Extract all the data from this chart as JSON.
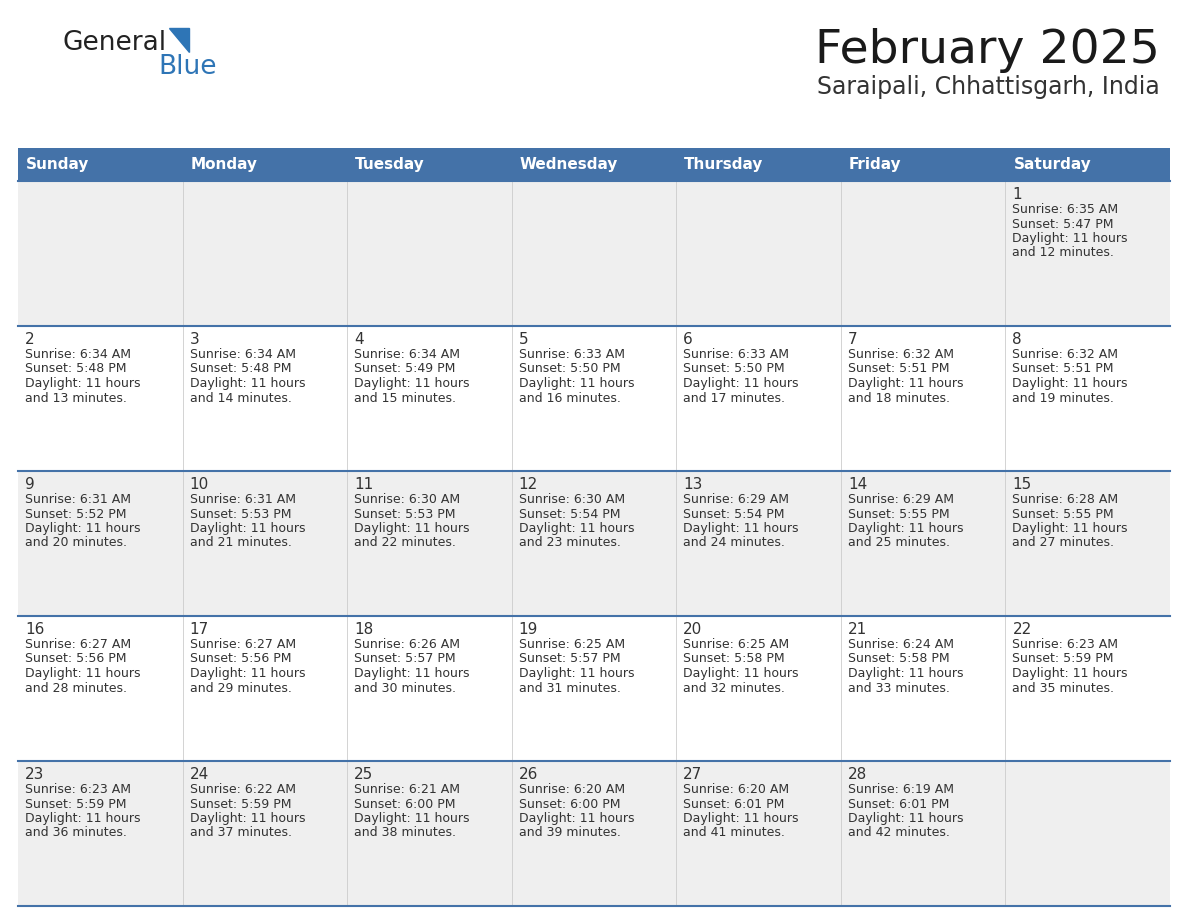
{
  "title": "February 2025",
  "subtitle": "Saraipali, Chhattisgarh, India",
  "days_of_week": [
    "Sunday",
    "Monday",
    "Tuesday",
    "Wednesday",
    "Thursday",
    "Friday",
    "Saturday"
  ],
  "header_bg": "#4472A8",
  "header_text": "#FFFFFF",
  "cell_bg_odd": "#EFEFEF",
  "cell_bg_even": "#FFFFFF",
  "divider_color": "#4472A8",
  "text_color": "#333333",
  "day_num_color": "#333333",
  "logo_general_color": "#222222",
  "logo_blue_color": "#2E75B6",
  "logo_triangle_color": "#2E75B6",
  "calendar": [
    [
      {
        "day": null,
        "sunrise": null,
        "sunset": null,
        "daylight": null
      },
      {
        "day": null,
        "sunrise": null,
        "sunset": null,
        "daylight": null
      },
      {
        "day": null,
        "sunrise": null,
        "sunset": null,
        "daylight": null
      },
      {
        "day": null,
        "sunrise": null,
        "sunset": null,
        "daylight": null
      },
      {
        "day": null,
        "sunrise": null,
        "sunset": null,
        "daylight": null
      },
      {
        "day": null,
        "sunrise": null,
        "sunset": null,
        "daylight": null
      },
      {
        "day": 1,
        "sunrise": "6:35 AM",
        "sunset": "5:47 PM",
        "daylight": "11 hours and 12 minutes."
      }
    ],
    [
      {
        "day": 2,
        "sunrise": "6:34 AM",
        "sunset": "5:48 PM",
        "daylight": "11 hours and 13 minutes."
      },
      {
        "day": 3,
        "sunrise": "6:34 AM",
        "sunset": "5:48 PM",
        "daylight": "11 hours and 14 minutes."
      },
      {
        "day": 4,
        "sunrise": "6:34 AM",
        "sunset": "5:49 PM",
        "daylight": "11 hours and 15 minutes."
      },
      {
        "day": 5,
        "sunrise": "6:33 AM",
        "sunset": "5:50 PM",
        "daylight": "11 hours and 16 minutes."
      },
      {
        "day": 6,
        "sunrise": "6:33 AM",
        "sunset": "5:50 PM",
        "daylight": "11 hours and 17 minutes."
      },
      {
        "day": 7,
        "sunrise": "6:32 AM",
        "sunset": "5:51 PM",
        "daylight": "11 hours and 18 minutes."
      },
      {
        "day": 8,
        "sunrise": "6:32 AM",
        "sunset": "5:51 PM",
        "daylight": "11 hours and 19 minutes."
      }
    ],
    [
      {
        "day": 9,
        "sunrise": "6:31 AM",
        "sunset": "5:52 PM",
        "daylight": "11 hours and 20 minutes."
      },
      {
        "day": 10,
        "sunrise": "6:31 AM",
        "sunset": "5:53 PM",
        "daylight": "11 hours and 21 minutes."
      },
      {
        "day": 11,
        "sunrise": "6:30 AM",
        "sunset": "5:53 PM",
        "daylight": "11 hours and 22 minutes."
      },
      {
        "day": 12,
        "sunrise": "6:30 AM",
        "sunset": "5:54 PM",
        "daylight": "11 hours and 23 minutes."
      },
      {
        "day": 13,
        "sunrise": "6:29 AM",
        "sunset": "5:54 PM",
        "daylight": "11 hours and 24 minutes."
      },
      {
        "day": 14,
        "sunrise": "6:29 AM",
        "sunset": "5:55 PM",
        "daylight": "11 hours and 25 minutes."
      },
      {
        "day": 15,
        "sunrise": "6:28 AM",
        "sunset": "5:55 PM",
        "daylight": "11 hours and 27 minutes."
      }
    ],
    [
      {
        "day": 16,
        "sunrise": "6:27 AM",
        "sunset": "5:56 PM",
        "daylight": "11 hours and 28 minutes."
      },
      {
        "day": 17,
        "sunrise": "6:27 AM",
        "sunset": "5:56 PM",
        "daylight": "11 hours and 29 minutes."
      },
      {
        "day": 18,
        "sunrise": "6:26 AM",
        "sunset": "5:57 PM",
        "daylight": "11 hours and 30 minutes."
      },
      {
        "day": 19,
        "sunrise": "6:25 AM",
        "sunset": "5:57 PM",
        "daylight": "11 hours and 31 minutes."
      },
      {
        "day": 20,
        "sunrise": "6:25 AM",
        "sunset": "5:58 PM",
        "daylight": "11 hours and 32 minutes."
      },
      {
        "day": 21,
        "sunrise": "6:24 AM",
        "sunset": "5:58 PM",
        "daylight": "11 hours and 33 minutes."
      },
      {
        "day": 22,
        "sunrise": "6:23 AM",
        "sunset": "5:59 PM",
        "daylight": "11 hours and 35 minutes."
      }
    ],
    [
      {
        "day": 23,
        "sunrise": "6:23 AM",
        "sunset": "5:59 PM",
        "daylight": "11 hours and 36 minutes."
      },
      {
        "day": 24,
        "sunrise": "6:22 AM",
        "sunset": "5:59 PM",
        "daylight": "11 hours and 37 minutes."
      },
      {
        "day": 25,
        "sunrise": "6:21 AM",
        "sunset": "6:00 PM",
        "daylight": "11 hours and 38 minutes."
      },
      {
        "day": 26,
        "sunrise": "6:20 AM",
        "sunset": "6:00 PM",
        "daylight": "11 hours and 39 minutes."
      },
      {
        "day": 27,
        "sunrise": "6:20 AM",
        "sunset": "6:01 PM",
        "daylight": "11 hours and 41 minutes."
      },
      {
        "day": 28,
        "sunrise": "6:19 AM",
        "sunset": "6:01 PM",
        "daylight": "11 hours and 42 minutes."
      },
      {
        "day": null,
        "sunrise": null,
        "sunset": null,
        "daylight": null
      }
    ]
  ]
}
